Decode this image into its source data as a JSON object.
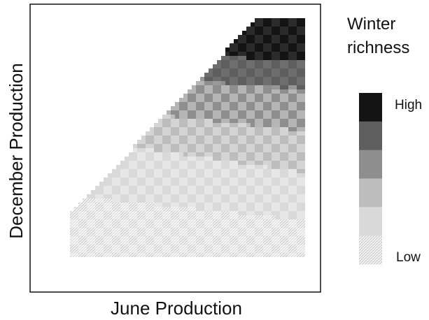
{
  "chart_data": {
    "type": "heatmap",
    "title": "",
    "xlabel": "June Production",
    "ylabel": "December Production",
    "legend": {
      "title_lines": [
        "Winter",
        "richness"
      ],
      "high_label": "High",
      "low_label": "Low",
      "placement": "right"
    },
    "tick_labels": "none",
    "grid": false,
    "domain": "upper-left triangle is empty; values defined where December production <= June production",
    "levels": [
      {
        "level": 1,
        "shade": "#ececec"
      },
      {
        "level": 2,
        "shade": "#d9d9d9"
      },
      {
        "level": 3,
        "shade": "#bdbdbd"
      },
      {
        "level": 4,
        "shade": "#8e8e8e"
      },
      {
        "level": 5,
        "shade": "#5e5e5e"
      },
      {
        "level": 6,
        "shade": "#141414"
      }
    ],
    "level_boundaries_relative_dec": [
      {
        "between": [
          1,
          2
        ],
        "dec_at_june_min": 0.26,
        "dec_at_june_max": 0.16
      },
      {
        "between": [
          2,
          3
        ],
        "dec_at_june_min": 0.5,
        "dec_at_june_max": 0.36
      },
      {
        "between": [
          3,
          4
        ],
        "dec_at_june_min": 0.64,
        "dec_at_june_max": 0.53
      },
      {
        "between": [
          4,
          5
        ],
        "dec_at_june_min": 0.79,
        "dec_at_june_max": 0.7
      },
      {
        "between": [
          5,
          6
        ],
        "dec_at_june_min": 0.88,
        "dec_at_june_max": 0.82
      }
    ]
  }
}
